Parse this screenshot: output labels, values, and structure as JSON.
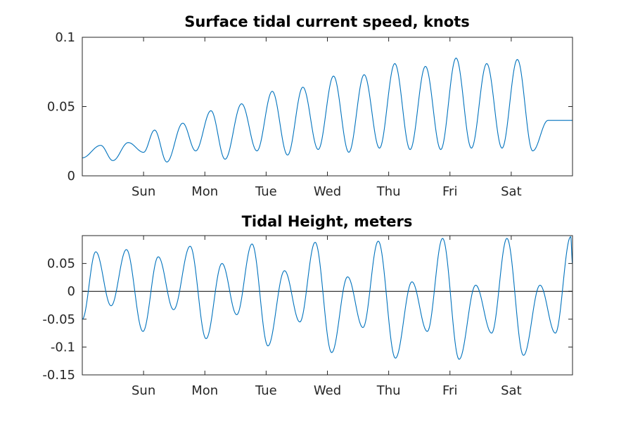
{
  "chart_data": [
    {
      "type": "line",
      "title": "Surface tidal current speed, knots",
      "xlabel": "",
      "ylabel": "",
      "x_unit": "days",
      "xlim": [
        0,
        8
      ],
      "ylim": [
        0,
        0.1
      ],
      "yticks": [
        0,
        0.05,
        0.1
      ],
      "ytick_labels": [
        "0",
        "0.05",
        "0.1"
      ],
      "xticks": [
        1,
        2,
        3,
        4,
        5,
        6,
        7
      ],
      "xtick_labels": [
        "Sun",
        "Mon",
        "Tue",
        "Wed",
        "Thu",
        "Fri",
        "Sat"
      ],
      "series": [
        {
          "name": "current speed",
          "color": "#0072BD",
          "x": [
            0,
            0.3,
            0.5,
            0.75,
            1.0,
            1.18,
            1.38,
            1.64,
            1.85,
            2.1,
            2.33,
            2.6,
            2.85,
            3.1,
            3.35,
            3.6,
            3.85,
            4.1,
            4.35,
            4.6,
            4.85,
            5.1,
            5.35,
            5.6,
            5.85,
            6.1,
            6.35,
            6.6,
            6.85,
            7.1,
            7.35,
            7.6,
            7.85,
            8.0
          ],
          "values": [
            0.013,
            0.022,
            0.011,
            0.024,
            0.017,
            0.033,
            0.01,
            0.038,
            0.018,
            0.047,
            0.012,
            0.052,
            0.018,
            0.061,
            0.015,
            0.064,
            0.019,
            0.072,
            0.017,
            0.073,
            0.02,
            0.081,
            0.019,
            0.079,
            0.019,
            0.085,
            0.02,
            0.081,
            0.02,
            0.084,
            0.018,
            0.04,
            0.04,
            0.04
          ]
        }
      ]
    },
    {
      "type": "line",
      "title": "Tidal Height, meters",
      "xlabel": "",
      "ylabel": "",
      "x_unit": "days",
      "xlim": [
        0,
        8
      ],
      "ylim": [
        -0.15,
        0.1
      ],
      "yticks": [
        -0.15,
        -0.1,
        -0.05,
        0,
        0.05
      ],
      "ytick_labels": [
        "-0.15",
        "-0.1",
        "-0.05",
        "0",
        "0.05"
      ],
      "xticks": [
        1,
        2,
        3,
        4,
        5,
        6,
        7
      ],
      "xtick_labels": [
        "Sun",
        "Mon",
        "Tue",
        "Wed",
        "Thu",
        "Fri",
        "Sat"
      ],
      "zero_line": true,
      "series": [
        {
          "name": "tidal height",
          "color": "#0072BD",
          "x": [
            0,
            0.22,
            0.47,
            0.72,
            0.99,
            1.24,
            1.49,
            1.76,
            2.02,
            2.28,
            2.52,
            2.77,
            3.03,
            3.3,
            3.55,
            3.8,
            4.07,
            4.33,
            4.58,
            4.83,
            5.11,
            5.38,
            5.63,
            5.88,
            6.15,
            6.42,
            6.68,
            6.93,
            7.2,
            7.47,
            7.72,
            7.97,
            8.0
          ],
          "values": [
            -0.05,
            0.071,
            -0.026,
            0.075,
            -0.072,
            0.062,
            -0.033,
            0.081,
            -0.085,
            0.05,
            -0.042,
            0.085,
            -0.098,
            0.037,
            -0.055,
            0.088,
            -0.11,
            0.026,
            -0.065,
            0.09,
            -0.12,
            0.017,
            -0.072,
            0.095,
            -0.122,
            0.011,
            -0.075,
            0.095,
            -0.115,
            0.011,
            -0.075,
            0.098,
            0.05
          ]
        }
      ]
    }
  ]
}
